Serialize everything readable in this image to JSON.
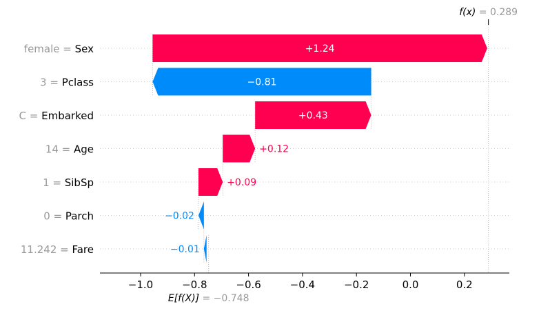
{
  "chart_data": {
    "type": "waterfall",
    "base_value": -0.748,
    "base_label": "E[f(X)]",
    "base_value_text": "= −0.748",
    "output_value": 0.289,
    "output_label": "f(x)",
    "output_value_text": "= 0.289",
    "xlim": [
      -1.16,
      0.25
    ],
    "xticks": [
      -1.0,
      -0.8,
      -0.6,
      -0.4,
      -0.2,
      0.0,
      0.2
    ],
    "xtick_labels": [
      "−1.0",
      "−0.8",
      "−0.6",
      "−0.4",
      "−0.2",
      "0.0",
      "0.2"
    ],
    "grid": "dotted-horizontal",
    "features": [
      {
        "value": "female",
        "name": "Sex",
        "start": -0.9555,
        "end": 0.2845,
        "contribution_label": "+1.24"
      },
      {
        "value": "3",
        "name": "Pclass",
        "start": -0.1455,
        "end": -0.9555,
        "contribution_label": "−0.81"
      },
      {
        "value": "C",
        "name": "Embarked",
        "start": -0.5755,
        "end": -0.1455,
        "contribution_label": "+0.43"
      },
      {
        "value": "14",
        "name": "Age",
        "start": -0.6955,
        "end": -0.5755,
        "contribution_label": "+0.12"
      },
      {
        "value": "1",
        "name": "SibSp",
        "start": -0.7855,
        "end": -0.6955,
        "contribution_label": "+0.09"
      },
      {
        "value": "0",
        "name": "Parch",
        "start": -0.7655,
        "end": -0.7855,
        "contribution_label": "−0.02"
      },
      {
        "value": "11.242",
        "name": "Fare",
        "start": -0.7555,
        "end": -0.7655,
        "contribution_label": "−0.01"
      }
    ],
    "colors": {
      "positive": "#ff0051",
      "negative": "#008bfb",
      "feature_value": "#999999",
      "feature_name": "#000000",
      "grid": "#cccccc"
    }
  }
}
